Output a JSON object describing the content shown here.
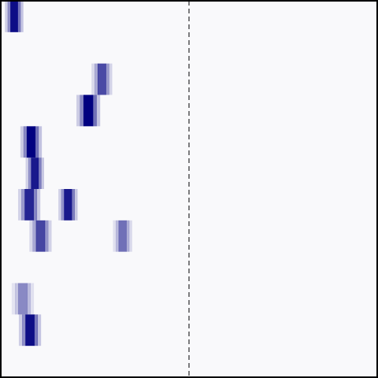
{
  "chart_data": {
    "type": "heatmap",
    "title": "",
    "xlabel": "",
    "ylabel": "",
    "grid": false,
    "rows": 12,
    "x_range": [
      0,
      1
    ],
    "background_color": "#f9f9fb",
    "cell_color": "#000080",
    "frame_color": "#000000",
    "divider": {
      "x": 0.5,
      "style": "dashed",
      "color": "#000000"
    },
    "peaks": [
      {
        "row": 0,
        "x": 0.035,
        "width": 0.048,
        "intensity": 0.95
      },
      {
        "row": 2,
        "x": 0.268,
        "width": 0.054,
        "intensity": 0.7
      },
      {
        "row": 3,
        "x": 0.232,
        "width": 0.062,
        "intensity": 1.0
      },
      {
        "row": 4,
        "x": 0.08,
        "width": 0.056,
        "intensity": 1.0
      },
      {
        "row": 5,
        "x": 0.09,
        "width": 0.048,
        "intensity": 0.9
      },
      {
        "row": 6,
        "x": 0.075,
        "width": 0.058,
        "intensity": 0.85
      },
      {
        "row": 6,
        "x": 0.178,
        "width": 0.05,
        "intensity": 0.9
      },
      {
        "row": 7,
        "x": 0.105,
        "width": 0.058,
        "intensity": 0.72
      },
      {
        "row": 7,
        "x": 0.323,
        "width": 0.05,
        "intensity": 0.55
      },
      {
        "row": 9,
        "x": 0.058,
        "width": 0.058,
        "intensity": 0.45
      },
      {
        "row": 10,
        "x": 0.077,
        "width": 0.058,
        "intensity": 0.95
      }
    ]
  }
}
